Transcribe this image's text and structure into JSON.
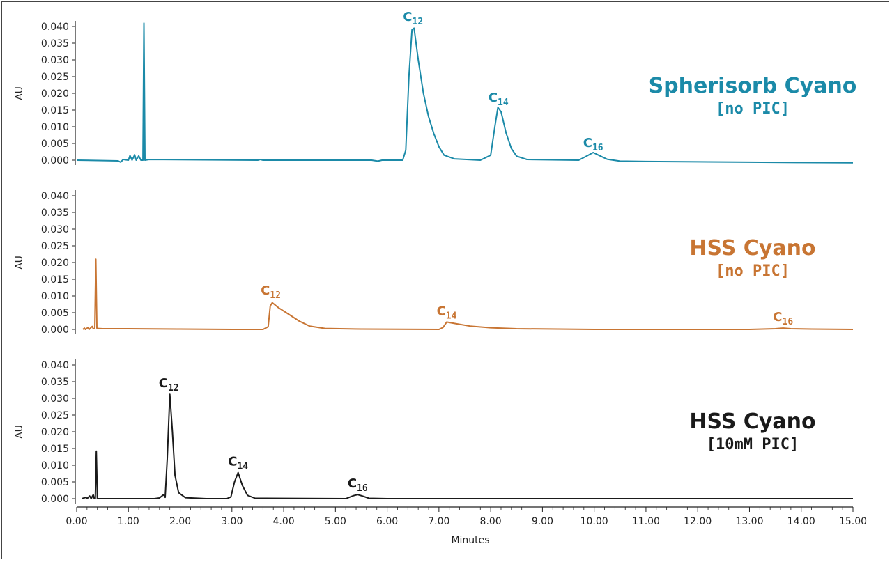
{
  "chart_data": {
    "type": "line",
    "xlabel": "Minutes",
    "xlim": [
      0,
      15
    ],
    "xticks": [
      "0.00",
      "1.00",
      "2.00",
      "3.00",
      "4.00",
      "5.00",
      "6.00",
      "7.00",
      "8.00",
      "9.00",
      "10.00",
      "11.00",
      "12.00",
      "13.00",
      "14.00",
      "15.00"
    ],
    "panels": [
      {
        "title": "Spherisorb Cyano",
        "subtitle": "[no PIC]",
        "color": "#1b8aa8",
        "ylabel": "AU",
        "ylim": [
          0,
          0.04
        ],
        "yticks": [
          "0.000",
          "0.005",
          "0.010",
          "0.015",
          "0.020",
          "0.025",
          "0.030",
          "0.035",
          "0.040"
        ],
        "peak_labels": [
          {
            "base": "C",
            "sub": "12",
            "x": 6.5,
            "y": 0.04
          },
          {
            "base": "C",
            "sub": "14",
            "x": 8.15,
            "y": 0.0158
          },
          {
            "base": "C",
            "sub": "16",
            "x": 9.98,
            "y": 0.0023
          }
        ],
        "series": [
          {
            "points": [
              [
                0,
                0
              ],
              [
                0.8,
                -0.0002
              ],
              [
                0.85,
                -0.0006
              ],
              [
                0.9,
                0.0002
              ],
              [
                1.0,
                0
              ],
              [
                1.03,
                0.0014
              ],
              [
                1.07,
                0
              ],
              [
                1.12,
                0.0016
              ],
              [
                1.15,
                0
              ],
              [
                1.2,
                0.0013
              ],
              [
                1.24,
                0
              ],
              [
                1.28,
                0
              ],
              [
                1.3,
                0.041
              ],
              [
                1.32,
                0
              ],
              [
                1.4,
                0.0002
              ],
              [
                3.5,
                0
              ],
              [
                3.55,
                0.0002
              ],
              [
                3.6,
                0
              ],
              [
                5.7,
                0
              ],
              [
                5.82,
                -0.0003
              ],
              [
                5.9,
                0
              ],
              [
                6.3,
                0
              ],
              [
                6.36,
                0.003
              ],
              [
                6.42,
                0.025
              ],
              [
                6.48,
                0.039
              ],
              [
                6.52,
                0.0395
              ],
              [
                6.6,
                0.03
              ],
              [
                6.7,
                0.02
              ],
              [
                6.8,
                0.013
              ],
              [
                6.9,
                0.008
              ],
              [
                7.0,
                0.004
              ],
              [
                7.1,
                0.0015
              ],
              [
                7.3,
                0.0004
              ],
              [
                7.8,
                0
              ],
              [
                8.0,
                0.0015
              ],
              [
                8.08,
                0.01
              ],
              [
                8.14,
                0.0158
              ],
              [
                8.2,
                0.0145
              ],
              [
                8.3,
                0.008
              ],
              [
                8.4,
                0.0035
              ],
              [
                8.5,
                0.0012
              ],
              [
                8.7,
                0.0002
              ],
              [
                9.7,
                0
              ],
              [
                9.85,
                0.0012
              ],
              [
                9.98,
                0.0023
              ],
              [
                10.1,
                0.0014
              ],
              [
                10.25,
                0.0003
              ],
              [
                10.5,
                -0.0003
              ],
              [
                11,
                -0.0004
              ],
              [
                12,
                -0.0005
              ],
              [
                13,
                -0.0006
              ],
              [
                14,
                -0.0007
              ],
              [
                15,
                -0.0008
              ]
            ]
          }
        ]
      },
      {
        "title": "HSS Cyano",
        "subtitle": "[no PIC]",
        "color": "#c87533",
        "ylabel": "AU",
        "ylim": [
          0,
          0.04
        ],
        "yticks": [
          "0.000",
          "0.005",
          "0.010",
          "0.015",
          "0.020",
          "0.025",
          "0.030",
          "0.035",
          "0.040"
        ],
        "peak_labels": [
          {
            "base": "C",
            "sub": "12",
            "x": 3.75,
            "y": 0.0083
          },
          {
            "base": "C",
            "sub": "14",
            "x": 7.15,
            "y": 0.0022
          },
          {
            "base": "C",
            "sub": "16",
            "x": 13.65,
            "y": 0.0004
          }
        ],
        "series": [
          {
            "points": [
              [
                0.12,
                0
              ],
              [
                0.15,
                0.0004
              ],
              [
                0.17,
                0
              ],
              [
                0.22,
                0.0006
              ],
              [
                0.24,
                0
              ],
              [
                0.3,
                0.0009
              ],
              [
                0.32,
                0.0002
              ],
              [
                0.35,
                0.0003
              ],
              [
                0.37,
                0.021
              ],
              [
                0.39,
                0.0004
              ],
              [
                0.42,
                0.0003
              ],
              [
                0.5,
                0.0002
              ],
              [
                1,
                0.0002
              ],
              [
                2,
                0.0001
              ],
              [
                3,
                0
              ],
              [
                3.6,
                0
              ],
              [
                3.7,
                0.0008
              ],
              [
                3.74,
                0.007
              ],
              [
                3.78,
                0.008
              ],
              [
                3.9,
                0.0065
              ],
              [
                4.1,
                0.0045
              ],
              [
                4.3,
                0.0025
              ],
              [
                4.5,
                0.001
              ],
              [
                4.8,
                0.0003
              ],
              [
                5.5,
                0.0001
              ],
              [
                7.0,
                0
              ],
              [
                7.08,
                0.0006
              ],
              [
                7.15,
                0.0022
              ],
              [
                7.3,
                0.0018
              ],
              [
                7.6,
                0.001
              ],
              [
                8.0,
                0.0005
              ],
              [
                8.5,
                0.0002
              ],
              [
                10,
                0
              ],
              [
                13,
                0
              ],
              [
                13.5,
                0.0002
              ],
              [
                13.65,
                0.0004
              ],
              [
                13.8,
                0.0002
              ],
              [
                14.2,
                0.0001
              ],
              [
                15,
                0
              ]
            ]
          }
        ]
      },
      {
        "title": "HSS Cyano",
        "subtitle": "[10mM PIC]",
        "color": "#1a1a1a",
        "ylabel": "AU",
        "ylim": [
          0,
          0.04
        ],
        "yticks": [
          "0.000",
          "0.005",
          "0.010",
          "0.015",
          "0.020",
          "0.025",
          "0.030",
          "0.035",
          "0.040"
        ],
        "peak_labels": [
          {
            "base": "C",
            "sub": "12",
            "x": 1.78,
            "y": 0.0312
          },
          {
            "base": "C",
            "sub": "14",
            "x": 3.12,
            "y": 0.0078
          },
          {
            "base": "C",
            "sub": "16",
            "x": 5.43,
            "y": 0.0012
          }
        ],
        "series": [
          {
            "points": [
              [
                0.1,
                0
              ],
              [
                0.18,
                0.0004
              ],
              [
                0.2,
                0
              ],
              [
                0.25,
                0.0008
              ],
              [
                0.28,
                0
              ],
              [
                0.32,
                0.0012
              ],
              [
                0.34,
                0
              ],
              [
                0.36,
                0
              ],
              [
                0.38,
                0.0142
              ],
              [
                0.4,
                0
              ],
              [
                1.0,
                0
              ],
              [
                1.5,
                0
              ],
              [
                1.6,
                0.0002
              ],
              [
                1.68,
                0.0012
              ],
              [
                1.71,
                0.0004
              ],
              [
                1.75,
                0.012
              ],
              [
                1.8,
                0.0312
              ],
              [
                1.85,
                0.02
              ],
              [
                1.9,
                0.007
              ],
              [
                1.97,
                0.0018
              ],
              [
                2.1,
                0.0003
              ],
              [
                2.5,
                0
              ],
              [
                2.9,
                0
              ],
              [
                2.98,
                0.0005
              ],
              [
                3.05,
                0.005
              ],
              [
                3.12,
                0.0078
              ],
              [
                3.2,
                0.004
              ],
              [
                3.3,
                0.001
              ],
              [
                3.45,
                0.0001
              ],
              [
                5.2,
                0
              ],
              [
                5.35,
                0.0009
              ],
              [
                5.43,
                0.0012
              ],
              [
                5.52,
                0.0008
              ],
              [
                5.65,
                0.0001
              ],
              [
                6,
                0
              ],
              [
                15,
                0
              ]
            ]
          }
        ]
      }
    ]
  }
}
